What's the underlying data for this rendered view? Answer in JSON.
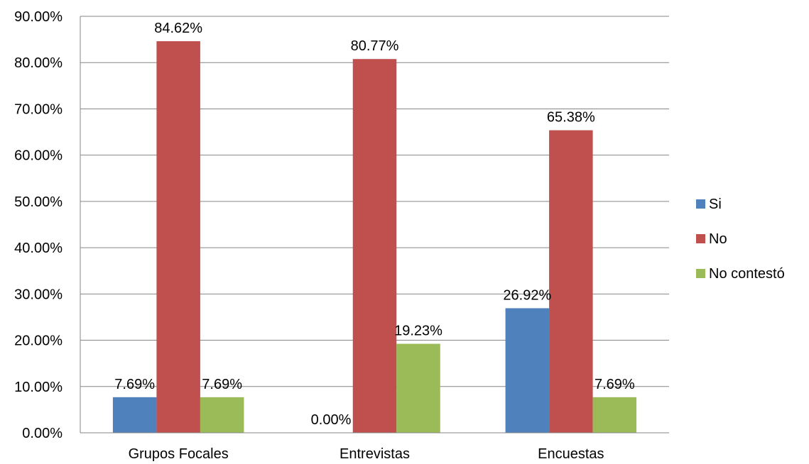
{
  "chart_data": {
    "type": "bar",
    "title": "",
    "xlabel": "",
    "ylabel": "",
    "categories": [
      "Grupos Focales",
      "Entrevistas",
      "Encuestas"
    ],
    "series": [
      {
        "name": "Si",
        "color": "#4F81BD",
        "values": [
          7.69,
          0.0,
          26.92
        ],
        "labels": [
          "7.69%",
          "0.00%",
          "26.92%"
        ]
      },
      {
        "name": "No",
        "color": "#C0504D",
        "values": [
          84.62,
          80.77,
          65.38
        ],
        "labels": [
          "84.62%",
          "80.77%",
          "65.38%"
        ]
      },
      {
        "name": "No contestó",
        "color": "#9BBB59",
        "values": [
          7.69,
          19.23,
          7.69
        ],
        "labels": [
          "7.69%",
          "19.23%",
          "7.69%"
        ]
      }
    ],
    "ylim": [
      0,
      90
    ],
    "yticks": [
      0,
      10,
      20,
      30,
      40,
      50,
      60,
      70,
      80,
      90
    ],
    "ytick_labels": [
      "0.00%",
      "10.00%",
      "20.00%",
      "30.00%",
      "40.00%",
      "50.00%",
      "60.00%",
      "70.00%",
      "80.00%",
      "90.00%"
    ],
    "grid": true,
    "legend_position": "right"
  }
}
